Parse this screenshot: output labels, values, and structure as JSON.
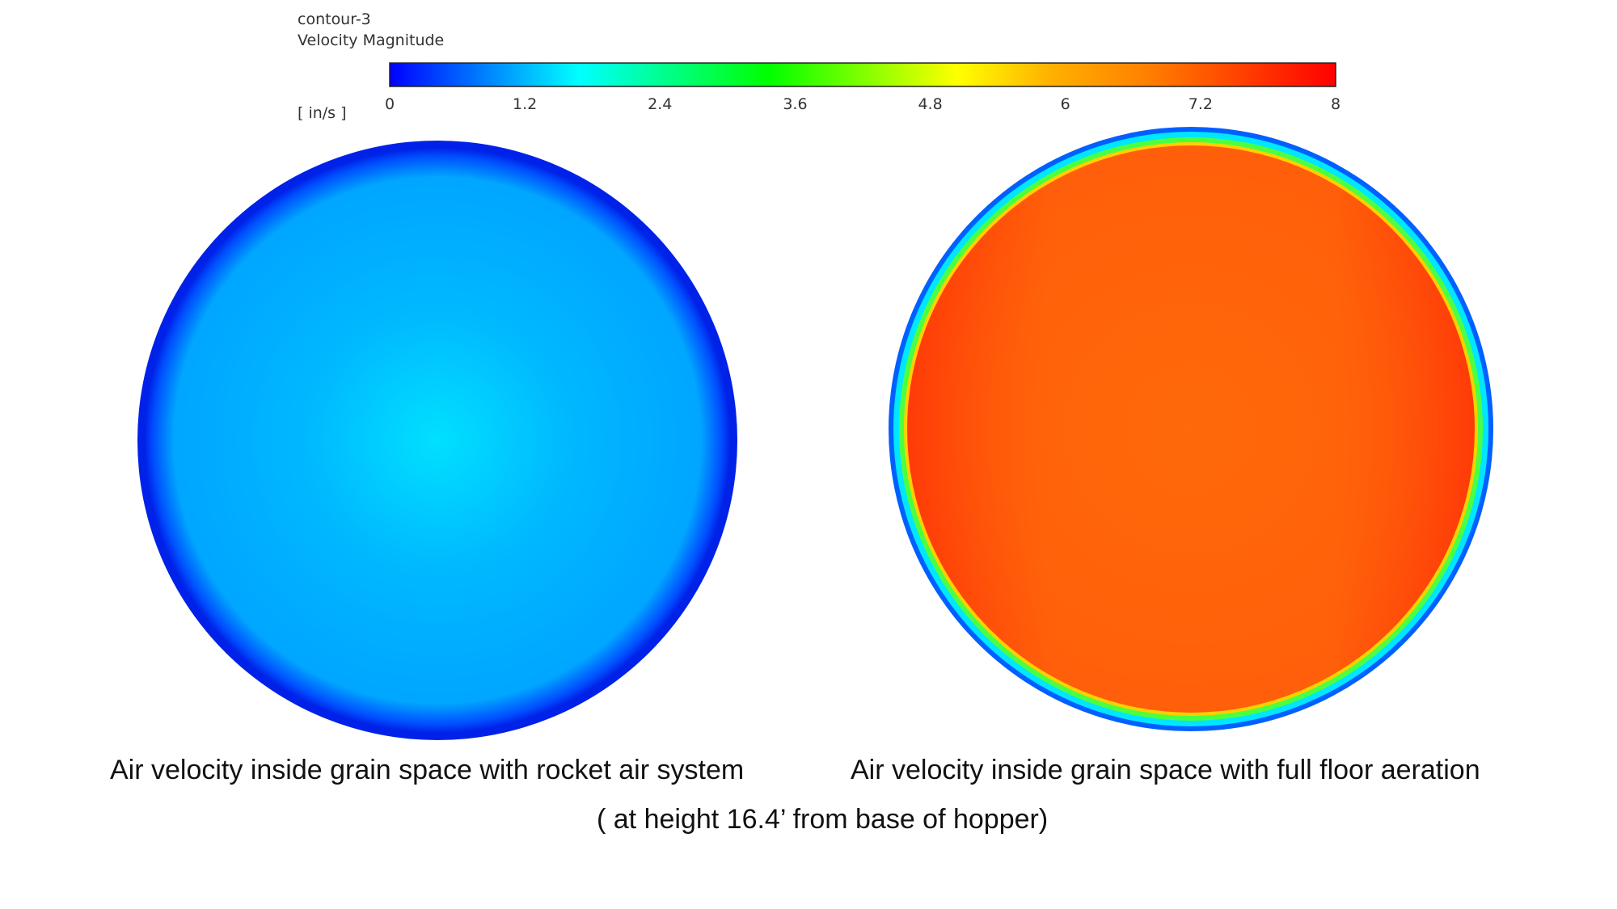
{
  "legend": {
    "contour_name": "contour-3",
    "variable": "Velocity Magnitude",
    "units": "[ in/s ]",
    "ticks": [
      "0",
      "1.2",
      "2.4",
      "3.6",
      "4.8",
      "6",
      "7.2",
      "8"
    ],
    "colormap": [
      "#0000ff",
      "#0080ff",
      "#00ffff",
      "#00ff80",
      "#00ff00",
      "#80ff00",
      "#ffff00",
      "#ffb000",
      "#ff8000",
      "#ff4000",
      "#ff0000"
    ]
  },
  "panels": [
    {
      "caption": "Air velocity inside grain space with rocket air system",
      "colors": {
        "center": "#00e0ff",
        "mid": "#00b8ff",
        "body": "#00a6ff",
        "edge": "#0050ff",
        "rim": "#0022e8"
      }
    },
    {
      "caption": "Air velocity inside grain space with full floor aeration",
      "colors": {
        "center": "#ff6a0a",
        "body": "#ff5e0a",
        "side": "#ff3a08",
        "ring_green": "#4cff40",
        "ring_cyan": "#00e6ff",
        "rim": "#0060ff"
      }
    }
  ],
  "subcaption": "( at height 16.4’ from base of hopper)"
}
